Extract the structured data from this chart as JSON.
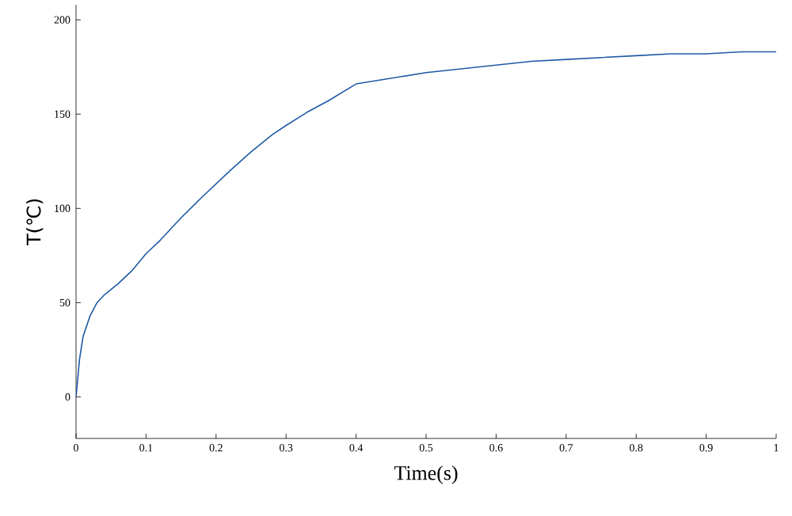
{
  "chart_data": {
    "type": "line",
    "xlabel": "Time(s)",
    "ylabel": "T(℃)",
    "x": [
      0,
      0.005,
      0.01,
      0.02,
      0.03,
      0.04,
      0.06,
      0.08,
      0.1,
      0.12,
      0.15,
      0.18,
      0.2,
      0.22,
      0.25,
      0.28,
      0.3,
      0.33,
      0.36,
      0.4,
      0.45,
      0.5,
      0.55,
      0.6,
      0.65,
      0.7,
      0.75,
      0.8,
      0.85,
      0.9,
      0.95,
      1.0
    ],
    "series": [
      {
        "color": "#1f5aa6",
        "values": [
          0,
          20,
          32,
          43,
          50,
          54,
          60,
          67,
          76,
          83,
          95,
          106,
          113,
          120,
          130,
          139,
          144,
          151,
          157,
          166,
          169,
          172,
          174,
          176,
          178,
          179,
          180,
          181,
          182,
          182,
          183,
          183
        ]
      }
    ],
    "xlim": [
      0,
      1
    ],
    "ylim": [
      -22,
      208
    ],
    "xticks": [
      0,
      0.1,
      0.2,
      0.3,
      0.4,
      0.5,
      0.6,
      0.7,
      0.8,
      0.9,
      1
    ],
    "yticks": [
      0,
      50,
      100,
      150,
      200
    ],
    "marker": "none",
    "line_style": "solid"
  }
}
